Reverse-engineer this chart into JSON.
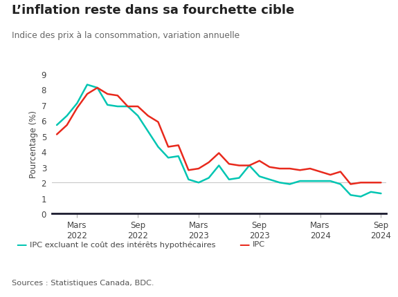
{
  "title": "L’inflation reste dans sa fourchette cible",
  "subtitle": "Indice des prix à la consommation, variation annuelle",
  "ylabel": "Pourcentage (%)",
  "source": "Sources : Statistiques Canada, BDC.",
  "ylim": [
    0,
    9
  ],
  "yticks": [
    0,
    1,
    2,
    3,
    4,
    5,
    6,
    7,
    8,
    9
  ],
  "background_color": "#ffffff",
  "gridline_color": "#c8c8c8",
  "title_color": "#222222",
  "xlabel_color": "#444444",
  "legend_label_ipc_ex": "IPC excluant le coût des intérêts hypothécaires",
  "legend_label_ipc": "IPC",
  "ipc_ex_color": "#00c5b2",
  "ipc_color": "#e8291c",
  "xtick_labels": [
    "Mars\n2022",
    "Sep\n2022",
    "Mars\n2023",
    "Sep\n2023",
    "Mars\n2024",
    "Sep\n2024"
  ],
  "xtick_positions": [
    2,
    8,
    14,
    20,
    26,
    32
  ],
  "ipc_ex_values": [
    5.7,
    6.3,
    7.1,
    8.3,
    8.1,
    7.0,
    6.9,
    6.9,
    6.3,
    5.3,
    4.3,
    3.6,
    3.7,
    2.2,
    2.0,
    2.3,
    3.1,
    2.2,
    2.3,
    3.1,
    2.4,
    2.2,
    2.0,
    1.9,
    2.1,
    2.1,
    2.1,
    2.1,
    1.9,
    1.2,
    1.1,
    1.4,
    1.3
  ],
  "ipc_values": [
    5.1,
    5.7,
    6.8,
    7.7,
    8.1,
    7.7,
    7.6,
    6.9,
    6.9,
    6.3,
    5.9,
    4.3,
    4.4,
    2.8,
    2.9,
    3.3,
    3.9,
    3.2,
    3.1,
    3.1,
    3.4,
    3.0,
    2.9,
    2.9,
    2.8,
    2.9,
    2.7,
    2.5,
    2.7,
    1.9,
    2.0,
    2.0,
    2.0
  ]
}
